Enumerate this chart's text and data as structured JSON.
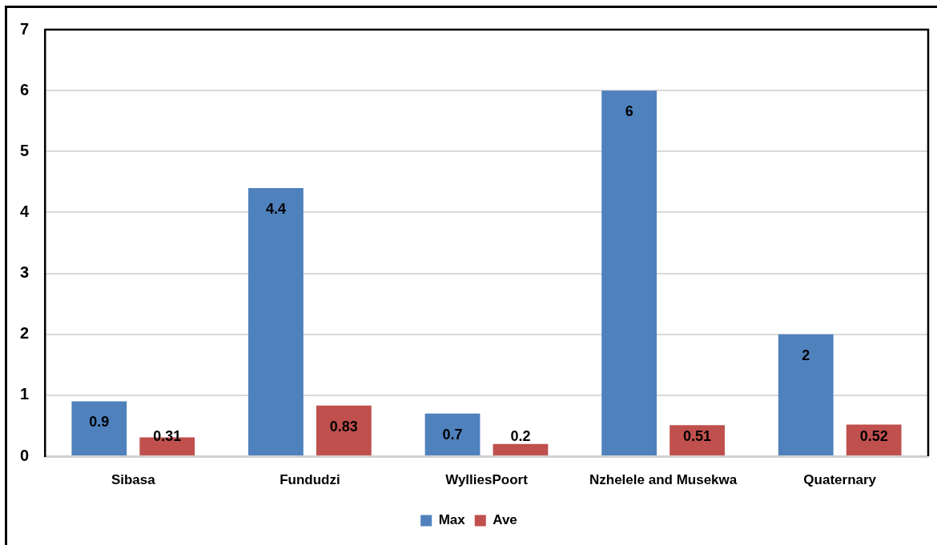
{
  "chart_data": {
    "type": "bar",
    "categories": [
      "Sibasa",
      "Fundudzi",
      "WylliesPoort",
      "Nzhelele and Musekwa",
      "Quaternary"
    ],
    "series": [
      {
        "name": "Max",
        "color": "#4f81bd",
        "values": [
          0.9,
          4.4,
          0.7,
          6,
          2
        ]
      },
      {
        "name": "Ave",
        "color": "#c0504d",
        "values": [
          0.31,
          0.83,
          0.2,
          0.51,
          0.52
        ]
      }
    ],
    "ylim": [
      0,
      7
    ],
    "yticks": [
      0,
      1,
      2,
      3,
      4,
      5,
      6,
      7
    ],
    "grid": "y",
    "legend": "bottom",
    "data_labels": true
  }
}
